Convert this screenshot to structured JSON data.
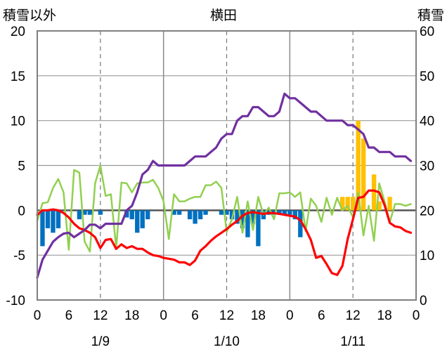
{
  "chart_data": {
    "type": "combo",
    "title": "横田",
    "left_axis_label": "積雪以外",
    "right_axis_label": "積雪",
    "left_ylim": [
      -10,
      20
    ],
    "right_ylim": [
      0,
      60
    ],
    "left_ticks": [
      "20",
      "15",
      "10",
      "5",
      "0",
      "-5",
      "-10"
    ],
    "right_ticks": [
      "60",
      "50",
      "40",
      "30",
      "20",
      "10",
      "0"
    ],
    "x_hours_range": [
      0,
      72
    ],
    "x_ticks": [
      "0",
      "6",
      "12",
      "18",
      "0",
      "6",
      "12",
      "18",
      "0",
      "6",
      "12",
      "18",
      "0"
    ],
    "date_labels": [
      "1/9",
      "1/10",
      "1/11"
    ],
    "grid": true,
    "colors": {
      "purple": "#7030A0",
      "red": "#FF0000",
      "green": "#92D050",
      "blue_bar": "#0070C0",
      "orange_bar": "#FFC000"
    },
    "series": [
      {
        "color": "purple",
        "axis": "left",
        "values": [
          [
            0,
            -7.5
          ],
          [
            1,
            -5.5
          ],
          [
            2,
            -4.5
          ],
          [
            3,
            -3.5
          ],
          [
            4,
            -3
          ],
          [
            5,
            -2.6
          ],
          [
            6,
            -2.5
          ],
          [
            7,
            -3
          ],
          [
            8,
            -2.6
          ],
          [
            9,
            -2.2
          ],
          [
            10,
            -1.6
          ],
          [
            11,
            -1.6
          ],
          [
            12,
            -2
          ],
          [
            13,
            -1.5
          ],
          [
            14,
            -1.5
          ],
          [
            15,
            -1.5
          ],
          [
            16,
            -1.5
          ],
          [
            17,
            0
          ],
          [
            18,
            0.5
          ],
          [
            19,
            2
          ],
          [
            20,
            4
          ],
          [
            21,
            4.5
          ],
          [
            22,
            5.5
          ],
          [
            23,
            5
          ],
          [
            24,
            5
          ],
          [
            25,
            5
          ],
          [
            26,
            5
          ],
          [
            27,
            5
          ],
          [
            28,
            5
          ],
          [
            29,
            5.5
          ],
          [
            30,
            6
          ],
          [
            31,
            6
          ],
          [
            32,
            6
          ],
          [
            33,
            6.5
          ],
          [
            34,
            7
          ],
          [
            35,
            8
          ],
          [
            36,
            8.5
          ],
          [
            37,
            8.5
          ],
          [
            38,
            10
          ],
          [
            39,
            10.5
          ],
          [
            40,
            10.5
          ],
          [
            41,
            11.5
          ],
          [
            42,
            11.5
          ],
          [
            43,
            11
          ],
          [
            44,
            10.5
          ],
          [
            45,
            10.5
          ],
          [
            46,
            11
          ],
          [
            47,
            13
          ],
          [
            48,
            12.5
          ],
          [
            49,
            12.5
          ],
          [
            50,
            12
          ],
          [
            51,
            11.5
          ],
          [
            52,
            11
          ],
          [
            53,
            11
          ],
          [
            54,
            10.5
          ],
          [
            55,
            10
          ],
          [
            56,
            10
          ],
          [
            57,
            10
          ],
          [
            58,
            10
          ],
          [
            59,
            9.5
          ],
          [
            60,
            9.5
          ],
          [
            61,
            9
          ],
          [
            62,
            8.5
          ],
          [
            63,
            7
          ],
          [
            64,
            7
          ],
          [
            65,
            6.5
          ],
          [
            66,
            6.5
          ],
          [
            67,
            6.5
          ],
          [
            68,
            6
          ],
          [
            69,
            6
          ],
          [
            70,
            6
          ],
          [
            71,
            5.5
          ]
        ]
      },
      {
        "color": "red",
        "axis": "left",
        "values": [
          [
            0,
            -0.5
          ],
          [
            1,
            0
          ],
          [
            2,
            0
          ],
          [
            3,
            0.1
          ],
          [
            4,
            0
          ],
          [
            5,
            -0.3
          ],
          [
            6,
            -0.8
          ],
          [
            7,
            -1.5
          ],
          [
            8,
            -2
          ],
          [
            9,
            -2.2
          ],
          [
            10,
            -2.5
          ],
          [
            11,
            -3
          ],
          [
            12,
            -4.2
          ],
          [
            13,
            -3.3
          ],
          [
            14,
            -3.2
          ],
          [
            15,
            -4.3
          ],
          [
            16,
            -3.8
          ],
          [
            17,
            -4.2
          ],
          [
            18,
            -4
          ],
          [
            19,
            -4.3
          ],
          [
            20,
            -4.3
          ],
          [
            21,
            -4.7
          ],
          [
            22,
            -5
          ],
          [
            23,
            -5.1
          ],
          [
            24,
            -5.3
          ],
          [
            25,
            -5.4
          ],
          [
            26,
            -5.5
          ],
          [
            27,
            -5.8
          ],
          [
            28,
            -5.8
          ],
          [
            29,
            -6.1
          ],
          [
            30,
            -5.6
          ],
          [
            31,
            -4.5
          ],
          [
            32,
            -4
          ],
          [
            33,
            -3.4
          ],
          [
            34,
            -2.9
          ],
          [
            35,
            -2.5
          ],
          [
            36,
            -2.1
          ],
          [
            37,
            -1.6
          ],
          [
            38,
            -1.2
          ],
          [
            39,
            -0.6
          ],
          [
            40,
            -0.3
          ],
          [
            41,
            -0.2
          ],
          [
            42,
            -0.3
          ],
          [
            43,
            -0.4
          ],
          [
            44,
            -0.3
          ],
          [
            45,
            -0.3
          ],
          [
            46,
            -0.4
          ],
          [
            47,
            -0.5
          ],
          [
            48,
            -0.6
          ],
          [
            49,
            -0.7
          ],
          [
            50,
            -1.1
          ],
          [
            51,
            -2.1
          ],
          [
            52,
            -3.3
          ],
          [
            53,
            -5.3
          ],
          [
            54,
            -5.1
          ],
          [
            55,
            -6
          ],
          [
            56,
            -7
          ],
          [
            57,
            -7.2
          ],
          [
            58,
            -6.2
          ],
          [
            59,
            -3.2
          ],
          [
            60,
            -1
          ],
          [
            61,
            1.4
          ],
          [
            62,
            1.5
          ],
          [
            63,
            2.2
          ],
          [
            64,
            2.2
          ],
          [
            65,
            2
          ],
          [
            66,
            0.6
          ],
          [
            67,
            -1.4
          ],
          [
            68,
            -1.8
          ],
          [
            69,
            -1.9
          ],
          [
            70,
            -2.3
          ],
          [
            71,
            -2.5
          ]
        ]
      },
      {
        "color": "green",
        "axis": "left",
        "values": [
          [
            0,
            -1.2
          ],
          [
            1,
            0.8
          ],
          [
            2,
            0.9
          ],
          [
            3,
            2.5
          ],
          [
            4,
            3.5
          ],
          [
            5,
            2
          ],
          [
            6,
            -4.4
          ],
          [
            7,
            4.5
          ],
          [
            8,
            4.2
          ],
          [
            9,
            -3.5
          ],
          [
            10,
            -4.6
          ],
          [
            11,
            3
          ],
          [
            12,
            5
          ],
          [
            13,
            1.6
          ],
          [
            14,
            1.8
          ],
          [
            15,
            -4.2
          ],
          [
            16,
            3.1
          ],
          [
            17,
            3
          ],
          [
            18,
            2
          ],
          [
            19,
            3
          ],
          [
            20,
            3.1
          ],
          [
            21,
            3.1
          ],
          [
            22,
            3.4
          ],
          [
            23,
            2.5
          ],
          [
            24,
            1
          ],
          [
            25,
            -3.2
          ],
          [
            26,
            1.8
          ],
          [
            27,
            1
          ],
          [
            28,
            1
          ],
          [
            29,
            1.3
          ],
          [
            30,
            1.5
          ],
          [
            31,
            1.5
          ],
          [
            32,
            2.8
          ],
          [
            33,
            2.8
          ],
          [
            34,
            3.2
          ],
          [
            35,
            2.5
          ],
          [
            36,
            -2.4
          ],
          [
            37,
            -1
          ],
          [
            38,
            1.5
          ],
          [
            39,
            -2.5
          ],
          [
            40,
            1
          ],
          [
            41,
            -2.2
          ],
          [
            42,
            1.5
          ],
          [
            43,
            -0.5
          ],
          [
            44,
            0.3
          ],
          [
            45,
            -1
          ],
          [
            46,
            1.9
          ],
          [
            47,
            1.9
          ],
          [
            48,
            2
          ],
          [
            49,
            1.5
          ],
          [
            50,
            2
          ],
          [
            51,
            -2.3
          ],
          [
            52,
            1.3
          ],
          [
            53,
            0.5
          ],
          [
            54,
            -1.3
          ],
          [
            55,
            1.4
          ],
          [
            56,
            -0.5
          ],
          [
            57,
            1.4
          ],
          [
            58,
            0
          ],
          [
            59,
            0.5
          ],
          [
            60,
            -0.8
          ],
          [
            61,
            2
          ],
          [
            62,
            -2.8
          ],
          [
            63,
            0.5
          ],
          [
            64,
            -3.4
          ],
          [
            65,
            3
          ],
          [
            66,
            1
          ],
          [
            67,
            -1.3
          ],
          [
            68,
            0.7
          ],
          [
            69,
            0.7
          ],
          [
            70,
            0.5
          ],
          [
            71,
            0.7
          ]
        ]
      }
    ],
    "bars_left": [
      [
        1,
        -4
      ],
      [
        2,
        -2
      ],
      [
        3,
        -2.5
      ],
      [
        4,
        -2
      ],
      [
        8,
        -1
      ],
      [
        9,
        -0.5
      ],
      [
        10,
        -0.5
      ],
      [
        12,
        -0.5
      ],
      [
        17,
        -0.8
      ],
      [
        18,
        -1
      ],
      [
        19,
        -2.5
      ],
      [
        20,
        -2
      ],
      [
        21,
        -1
      ],
      [
        26,
        -0.5
      ],
      [
        27,
        -0.5
      ],
      [
        29,
        -1
      ],
      [
        30,
        -1.5
      ],
      [
        31,
        -1
      ],
      [
        32,
        -0.5
      ],
      [
        35,
        -0.5
      ],
      [
        36,
        -0.5
      ],
      [
        37,
        -1
      ],
      [
        38,
        -1.5
      ],
      [
        39,
        -2
      ],
      [
        40,
        -3
      ],
      [
        41,
        -1.5
      ],
      [
        42,
        -4
      ],
      [
        43,
        -1
      ],
      [
        44,
        -0.5
      ],
      [
        45,
        -0.5
      ],
      [
        46,
        -0.5
      ],
      [
        47,
        -0.5
      ],
      [
        48,
        -0.5
      ],
      [
        49,
        -1
      ],
      [
        50,
        -3
      ]
    ],
    "bars_right": [
      [
        58,
        23
      ],
      [
        59,
        23
      ],
      [
        60,
        23
      ],
      [
        61,
        40
      ],
      [
        62,
        36
      ],
      [
        63,
        20
      ],
      [
        64,
        28
      ],
      [
        65,
        22
      ],
      [
        66,
        20
      ],
      [
        67,
        23
      ]
    ]
  }
}
